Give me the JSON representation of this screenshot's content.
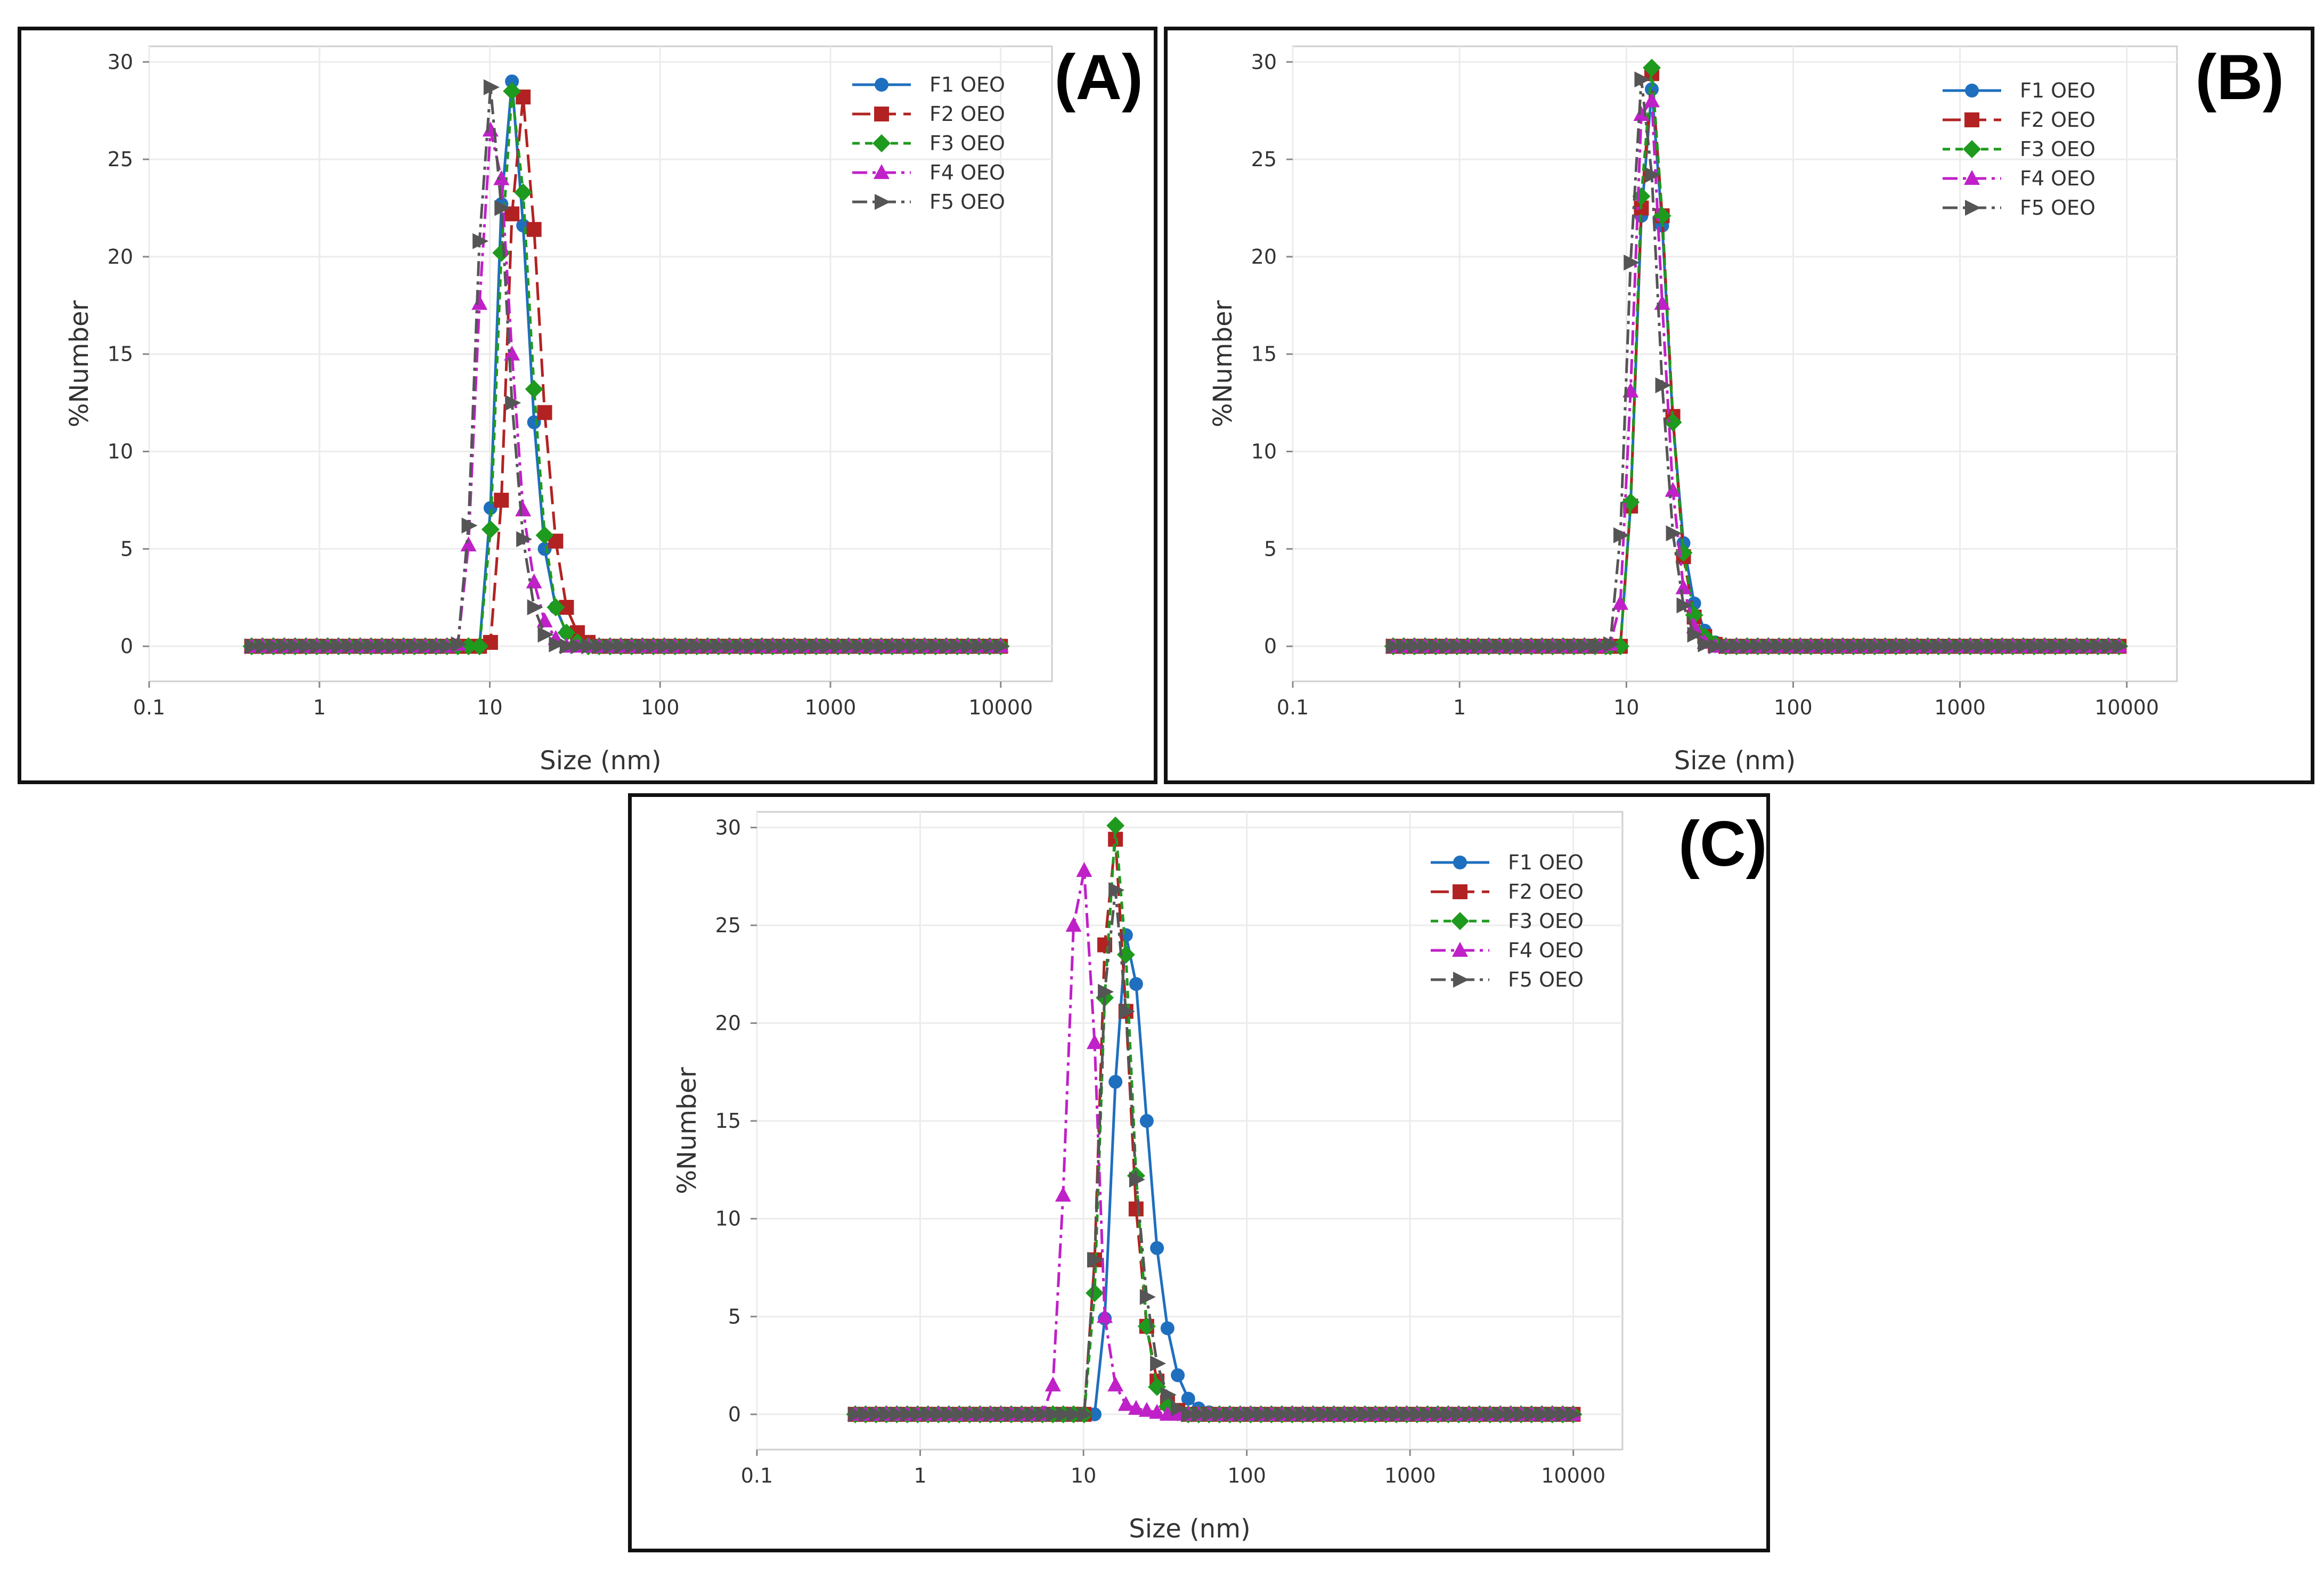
{
  "figure": {
    "colors": {
      "F1": "#1f6fbf",
      "F2": "#b22222",
      "F3": "#1e9a1e",
      "F4": "#c020c8",
      "F5": "#555555"
    }
  },
  "chart_data": [
    {
      "type": "line",
      "panel_label": "(A)",
      "xscale": "log",
      "xlabel": "Size (nm)",
      "ylabel": "%Number",
      "xlim": [
        0.1,
        20000
      ],
      "ylim": [
        -1.8,
        30.8
      ],
      "xticks": [
        "0.1",
        "1",
        "10",
        "100",
        "1000",
        "10000"
      ],
      "yticks": [
        "0",
        "5",
        "10",
        "15",
        "20",
        "25",
        "30"
      ],
      "legend_position": "top-right",
      "series": [
        {
          "name": "F1 OEO",
          "key": "F1",
          "marker": "circle",
          "dash": "solid",
          "peak": {
            "x": [
              7.5,
              8.7,
              10.1,
              11.7,
              13.5,
              15.7,
              18.2,
              21.0,
              24.4,
              28.2,
              32.7
            ],
            "y": [
              0,
              0,
              7.1,
              22.7,
              29.0,
              21.6,
              11.5,
              5.0,
              2.0,
              0.7,
              0.2
            ]
          }
        },
        {
          "name": "F2 OEO",
          "key": "F2",
          "marker": "square",
          "dash": "long",
          "peak": {
            "x": [
              8.7,
              10.1,
              11.7,
              13.5,
              15.7,
              18.2,
              21.0,
              24.4,
              28.2,
              32.7,
              37.8
            ],
            "y": [
              0,
              0.2,
              7.5,
              22.2,
              28.2,
              21.4,
              12.0,
              5.4,
              2.0,
              0.7,
              0.2
            ]
          }
        },
        {
          "name": "F3 OEO",
          "key": "F3",
          "marker": "diamond",
          "dash": "dash",
          "peak": {
            "x": [
              7.5,
              8.7,
              10.1,
              11.7,
              13.5,
              15.7,
              18.2,
              21.0,
              24.4,
              28.2,
              32.7
            ],
            "y": [
              0,
              0,
              6.0,
              20.2,
              28.5,
              23.3,
              13.2,
              5.7,
              2.0,
              0.7,
              0.2
            ]
          }
        },
        {
          "name": "F4 OEO",
          "key": "F4",
          "marker": "triangle",
          "dash": "dashdot",
          "peak": {
            "x": [
              5.6,
              6.5,
              7.5,
              8.7,
              10.1,
              11.7,
              13.5,
              15.7,
              18.2,
              21.0,
              24.4
            ],
            "y": [
              0,
              0.1,
              5.2,
              17.6,
              26.5,
              24.0,
              15.0,
              7.0,
              3.3,
              1.3,
              0.4
            ]
          }
        },
        {
          "name": "F5 OEO",
          "key": "F5",
          "marker": "arrow",
          "dash": "dashdot",
          "peak": {
            "x": [
              5.6,
              6.5,
              7.5,
              8.7,
              10.1,
              11.7,
              13.5,
              15.7,
              18.2,
              21.0,
              24.4
            ],
            "y": [
              0,
              0.1,
              6.2,
              20.8,
              28.7,
              22.5,
              12.5,
              5.5,
              2.0,
              0.6,
              0.1
            ]
          }
        }
      ]
    },
    {
      "type": "line",
      "panel_label": "(B)",
      "xscale": "log",
      "xlabel": "Size (nm)",
      "ylabel": "%Number",
      "xlim": [
        0.1,
        20000
      ],
      "ylim": [
        -1.8,
        30.8
      ],
      "xticks": [
        "0.1",
        "1",
        "10",
        "100",
        "1000",
        "10000"
      ],
      "yticks": [
        "0",
        "5",
        "10",
        "15",
        "20",
        "25",
        "30"
      ],
      "legend_position": "top-right",
      "series": [
        {
          "name": "F1 OEO",
          "key": "F1",
          "marker": "circle",
          "dash": "solid",
          "peak": {
            "x": [
              8.0,
              9.2,
              10.6,
              12.3,
              14.2,
              16.4,
              19.0,
              22.0,
              25.5,
              29.5,
              34.1
            ],
            "y": [
              0,
              0,
              7.2,
              22.1,
              28.6,
              21.6,
              11.6,
              5.3,
              2.2,
              0.8,
              0.2
            ]
          }
        },
        {
          "name": "F2 OEO",
          "key": "F2",
          "marker": "square",
          "dash": "long",
          "peak": {
            "x": [
              8.0,
              9.2,
              10.6,
              12.3,
              14.2,
              16.4,
              19.0,
              22.0,
              25.5,
              29.5,
              34.1
            ],
            "y": [
              0,
              0,
              7.2,
              22.5,
              29.4,
              22.1,
              11.8,
              4.6,
              1.5,
              0.5,
              0.1
            ]
          }
        },
        {
          "name": "F3 OEO",
          "key": "F3",
          "marker": "diamond",
          "dash": "dash",
          "peak": {
            "x": [
              8.0,
              9.2,
              10.6,
              12.3,
              14.2,
              16.4,
              19.0,
              22.0,
              25.5,
              29.5,
              34.1
            ],
            "y": [
              0,
              0,
              7.4,
              23.1,
              29.7,
              22.1,
              11.5,
              4.8,
              1.6,
              0.5,
              0.1
            ]
          }
        },
        {
          "name": "F4 OEO",
          "key": "F4",
          "marker": "triangle",
          "dash": "dashdot",
          "peak": {
            "x": [
              6.9,
              8.0,
              9.2,
              10.6,
              12.3,
              14.2,
              16.4,
              19.0,
              22.0,
              25.5,
              29.5
            ],
            "y": [
              0,
              0.1,
              2.2,
              13.1,
              27.3,
              28.0,
              17.6,
              8.0,
              3.0,
              1.0,
              0.2
            ]
          }
        },
        {
          "name": "F5 OEO",
          "key": "F5",
          "marker": "arrow",
          "dash": "dashdot",
          "peak": {
            "x": [
              6.9,
              8.0,
              9.2,
              10.6,
              12.3,
              14.2,
              16.4,
              19.0,
              22.0,
              25.5,
              29.5
            ],
            "y": [
              0,
              0.1,
              5.7,
              19.7,
              29.1,
              24.2,
              13.4,
              5.8,
              2.1,
              0.6,
              0.1
            ]
          }
        }
      ]
    },
    {
      "type": "line",
      "panel_label": "(C)",
      "xscale": "log",
      "xlabel": "Size (nm)",
      "ylabel": "%Number",
      "xlim": [
        0.1,
        20000
      ],
      "ylim": [
        -1.8,
        30.8
      ],
      "xticks": [
        "0.1",
        "1",
        "10",
        "100",
        "1000",
        "10000"
      ],
      "yticks": [
        "0",
        "5",
        "10",
        "15",
        "20",
        "25",
        "30"
      ],
      "legend_position": "top-right",
      "series": [
        {
          "name": "F1 OEO",
          "key": "F1",
          "marker": "circle",
          "dash": "solid",
          "peak": {
            "x": [
              10.1,
              11.7,
              13.5,
              15.7,
              18.2,
              21.0,
              24.4,
              28.2,
              32.7,
              37.8,
              43.8,
              50.7,
              58.7
            ],
            "y": [
              0,
              0,
              4.9,
              17.0,
              24.5,
              22.0,
              15.0,
              8.5,
              4.4,
              2.0,
              0.8,
              0.3,
              0.1
            ]
          }
        },
        {
          "name": "F2 OEO",
          "key": "F2",
          "marker": "square",
          "dash": "long",
          "peak": {
            "x": [
              8.7,
              10.1,
              11.7,
              13.5,
              15.7,
              18.2,
              21.0,
              24.4,
              28.2,
              32.7,
              37.8,
              43.8
            ],
            "y": [
              0,
              0,
              7.9,
              24.0,
              29.4,
              20.6,
              10.5,
              4.5,
              1.7,
              0.6,
              0.2,
              0
            ]
          }
        },
        {
          "name": "F3 OEO",
          "key": "F3",
          "marker": "diamond",
          "dash": "dash",
          "peak": {
            "x": [
              8.7,
              10.1,
              11.7,
              13.5,
              15.7,
              18.2,
              21.0,
              24.4,
              28.2,
              32.7,
              37.8,
              43.8
            ],
            "y": [
              0,
              0,
              6.2,
              21.3,
              30.1,
              23.5,
              12.2,
              4.5,
              1.4,
              0.4,
              0.1,
              0
            ]
          }
        },
        {
          "name": "F4 OEO",
          "key": "F4",
          "marker": "triangle",
          "dash": "dashdot",
          "peak": {
            "x": [
              4.8,
              5.6,
              6.5,
              7.5,
              8.7,
              10.1,
              11.7,
              13.5,
              15.7,
              18.2,
              21.0,
              24.4,
              28.2
            ],
            "y": [
              0,
              0,
              1.5,
              11.2,
              25.0,
              27.8,
              19.0,
              5.0,
              1.5,
              0.5,
              0.3,
              0.2,
              0.1
            ]
          }
        },
        {
          "name": "F5 OEO",
          "key": "F5",
          "marker": "arrow",
          "dash": "dashdot",
          "peak": {
            "x": [
              8.7,
              10.1,
              11.7,
              13.5,
              15.7,
              18.2,
              21.0,
              24.4,
              28.2,
              32.7,
              37.8,
              43.8
            ],
            "y": [
              0,
              0,
              7.9,
              21.6,
              26.8,
              20.6,
              12.0,
              6.0,
              2.6,
              1.0,
              0.3,
              0
            ]
          }
        }
      ]
    }
  ]
}
